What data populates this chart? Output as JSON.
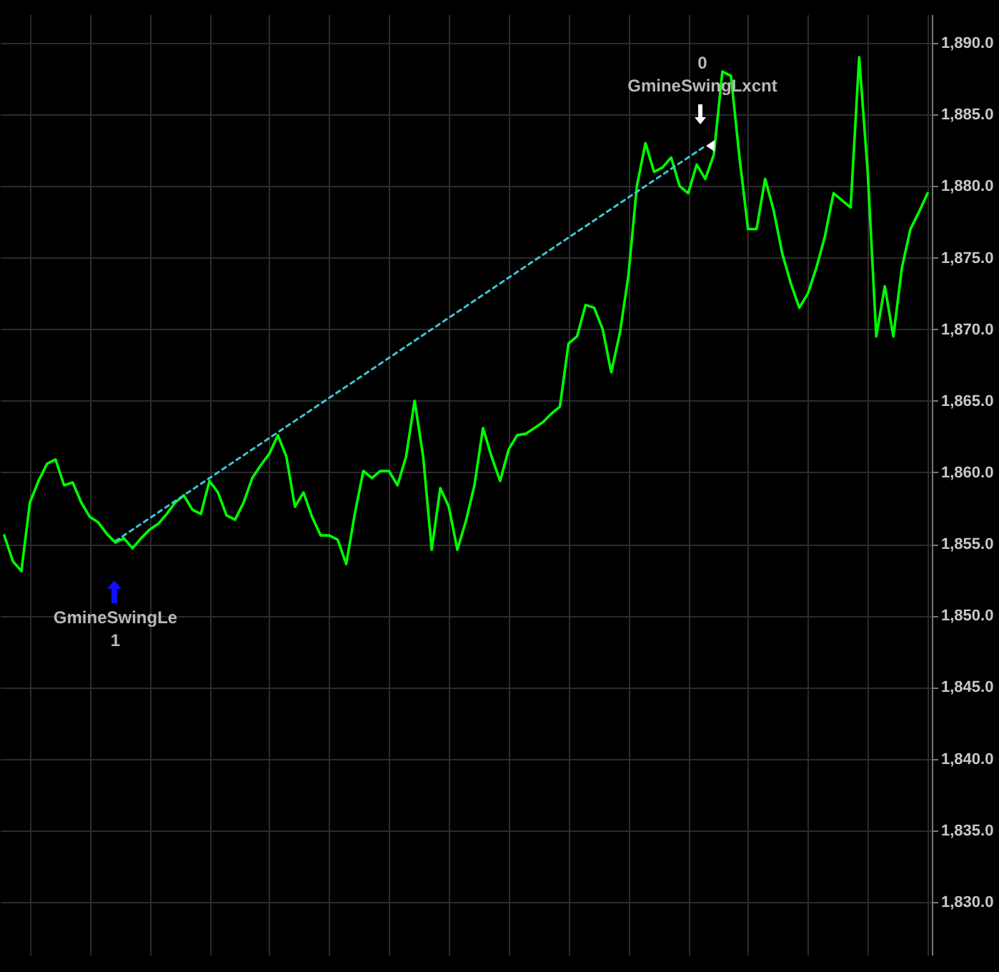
{
  "chart_data": {
    "type": "line",
    "categories": [
      null,
      null,
      null,
      null,
      null,
      null,
      null,
      null,
      null,
      null,
      null,
      null,
      null,
      null,
      null,
      null,
      null,
      null,
      null,
      null,
      null,
      null,
      null,
      null,
      null,
      null,
      null,
      null,
      null,
      null,
      null,
      null,
      null,
      null,
      null,
      null,
      null,
      null,
      null,
      null,
      null,
      null,
      null,
      null,
      null,
      null,
      null,
      null,
      null,
      null,
      null,
      null,
      null,
      null,
      null,
      null,
      null,
      null,
      null,
      null,
      null,
      null,
      null,
      null,
      null,
      null,
      null,
      null,
      null,
      null,
      null,
      null,
      null,
      null,
      null,
      null,
      null,
      null,
      null,
      null,
      null,
      null,
      null,
      null,
      null,
      null,
      null,
      null,
      null,
      null,
      null,
      null,
      null,
      null,
      null,
      null,
      null,
      null,
      null,
      null,
      null,
      null,
      null,
      null,
      null,
      null,
      null,
      null,
      null
    ],
    "series": [
      {
        "color": "#00ff00",
        "values": [
          1855.6,
          1853.8,
          1853.1,
          1857.9,
          1859.4,
          1860.6,
          1860.9,
          1859.1,
          1859.3,
          1857.9,
          1856.9,
          1856.5,
          1855.7,
          1855.1,
          1855.4,
          1854.7,
          1855.4,
          1856.0,
          1856.4,
          1857.1,
          1857.9,
          1858.4,
          1857.4,
          1857.1,
          1859.4,
          1858.6,
          1857.0,
          1856.7,
          1857.9,
          1859.6,
          1860.5,
          1861.3,
          1862.6,
          1861.1,
          1857.6,
          1858.6,
          1856.9,
          1855.6,
          1855.6,
          1855.3,
          1853.6,
          1857.1,
          1860.1,
          1859.6,
          1860.1,
          1860.1,
          1859.1,
          1861.1,
          1865.0,
          1861.1,
          1854.6,
          1858.9,
          1857.6,
          1854.6,
          1856.6,
          1859.1,
          1863.1,
          1861.1,
          1859.4,
          1861.6,
          1862.6,
          1862.7,
          1863.1,
          1863.5,
          1864.1,
          1864.6,
          1869.0,
          1869.5,
          1871.7,
          1871.5,
          1870.0,
          1867.0,
          1869.7,
          1873.7,
          1880.0,
          1883.0,
          1881.0,
          1881.3,
          1882.0,
          1880.0,
          1879.5,
          1881.5,
          1880.5,
          1882.2,
          1888.0,
          1887.7,
          1882.0,
          1877.0,
          1877.0,
          1880.5,
          1878.3,
          1875.3,
          1873.2,
          1871.5,
          1872.5,
          1874.3,
          1876.5,
          1879.5,
          1879.0,
          1878.5,
          1889.0,
          1881.0,
          1869.5,
          1873.0,
          1869.5,
          1874.3,
          1877.0,
          1878.2,
          1879.5
        ]
      },
      {
        "type": "line",
        "color": "#3fc6d0",
        "line_style": "dashed",
        "values": [
          null,
          null,
          null,
          null,
          null,
          null,
          null,
          null,
          null,
          null,
          null,
          null,
          null,
          1855.2,
          null,
          null,
          null,
          null,
          null,
          null,
          null,
          null,
          null,
          null,
          null,
          null,
          null,
          null,
          null,
          null,
          null,
          null,
          null,
          null,
          null,
          null,
          null,
          null,
          null,
          null,
          null,
          null,
          null,
          null,
          null,
          null,
          null,
          null,
          null,
          null,
          null,
          null,
          null,
          null,
          null,
          null,
          null,
          null,
          null,
          null,
          null,
          null,
          null,
          null,
          null,
          null,
          null,
          null,
          null,
          null,
          null,
          null,
          null,
          null,
          null,
          null,
          null,
          null,
          null,
          null,
          null,
          null,
          1882.8,
          null,
          null,
          null,
          null,
          null,
          null,
          null,
          null,
          null,
          null,
          null,
          null,
          null,
          null,
          null,
          null,
          null,
          null,
          null,
          null,
          null,
          null,
          null,
          null,
          null,
          null
        ]
      }
    ],
    "annotations": [
      "GmineSwingLe",
      "1",
      "0",
      "GmineSwingLxcnt"
    ],
    "ylim": [
      1826.3,
      1892
    ],
    "yticks": [
      {
        "value": 1830,
        "label": "1,830.0"
      },
      {
        "value": 1835,
        "label": "1,835.0"
      },
      {
        "value": 1840,
        "label": "1,840.0"
      },
      {
        "value": 1845,
        "label": "1,845.0"
      },
      {
        "value": 1850,
        "label": "1,850.0"
      },
      {
        "value": 1855,
        "label": "1,855.0"
      },
      {
        "value": 1860,
        "label": "1,860.0"
      },
      {
        "value": 1865,
        "label": "1,865.0"
      },
      {
        "value": 1870,
        "label": "1,870.0"
      },
      {
        "value": 1875,
        "label": "1,875.0"
      },
      {
        "value": 1880,
        "label": "1,880.0"
      },
      {
        "value": 1885,
        "label": "1,885.0"
      },
      {
        "value": 1890,
        "label": "1,890.0"
      }
    ],
    "grid": true,
    "tick_labels": "y"
  }
}
